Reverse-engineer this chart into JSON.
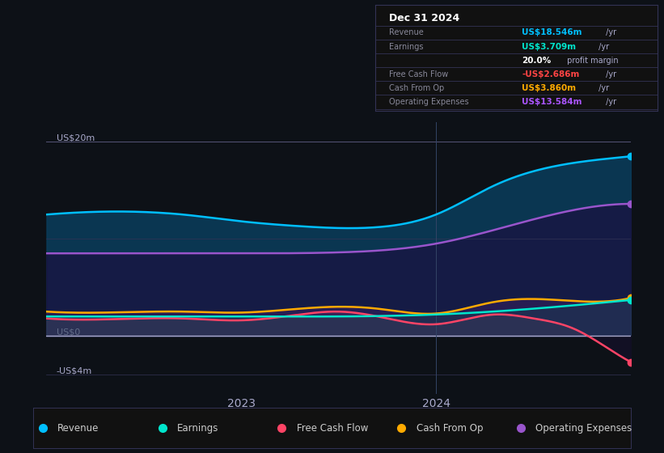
{
  "bg_color": "#0d1117",
  "plot_bg_color": "#0d1117",
  "title": "Dec 31 2024",
  "x_ticks": [
    2023,
    2024
  ],
  "ylim": [
    -6,
    22
  ],
  "xlim": [
    2022.0,
    2025.0
  ],
  "revenue_color": "#00bfff",
  "earnings_color": "#00e5cc",
  "fcf_color": "#ff4466",
  "cashop_color": "#ffaa00",
  "opex_color": "#9955cc",
  "legend_items": [
    {
      "label": "Revenue",
      "color": "#00bfff"
    },
    {
      "label": "Earnings",
      "color": "#00e5cc"
    },
    {
      "label": "Free Cash Flow",
      "color": "#ff4466"
    },
    {
      "label": "Cash From Op",
      "color": "#ffaa00"
    },
    {
      "label": "Operating Expenses",
      "color": "#9955cc"
    }
  ],
  "info_rows": [
    {
      "label": "Revenue",
      "value": "US$18.546m",
      "value_color": "#00bfff",
      "suffix": " /yr"
    },
    {
      "label": "Earnings",
      "value": "US$3.709m",
      "value_color": "#00e5cc",
      "suffix": " /yr"
    },
    {
      "label": "",
      "value": "20.0%",
      "value_color": "white",
      "suffix": " profit margin"
    },
    {
      "label": "Free Cash Flow",
      "value": "-US$2.686m",
      "value_color": "#ff4444",
      "suffix": " /yr"
    },
    {
      "label": "Cash From Op",
      "value": "US$3.860m",
      "value_color": "#ffaa00",
      "suffix": " /yr"
    },
    {
      "label": "Operating Expenses",
      "value": "US$13.584m",
      "value_color": "#aa55ff",
      "suffix": " /yr"
    }
  ]
}
